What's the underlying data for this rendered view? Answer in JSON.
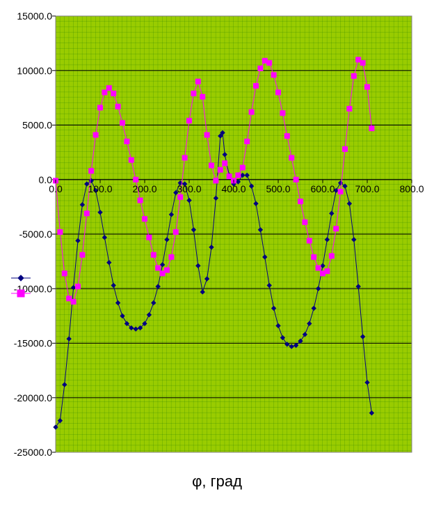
{
  "chart_data": {
    "type": "line",
    "title": "",
    "xlabel": "φ, град",
    "ylabel": "",
    "xlim": [
      0,
      800
    ],
    "ylim": [
      -25000,
      15000
    ],
    "grid": true,
    "legend": "left",
    "plot_background": "#99CC00",
    "x_tick_labels": [
      "0.0",
      "100.0",
      "200.0",
      "300.0",
      "400.0",
      "500.0",
      "600.0",
      "700.0",
      "800.0"
    ],
    "y_tick_labels": [
      "15000.0",
      "10000.0",
      "5000.0",
      "0.0",
      "-5000.0",
      "-10000.0",
      "-15000.0",
      "-20000.0",
      "-25000.0"
    ],
    "series": [
      {
        "color": "#000080",
        "marker": "diamond",
        "x": [
          0,
          10,
          20,
          30,
          40,
          50,
          60,
          70,
          80,
          90,
          100,
          110,
          120,
          130,
          140,
          150,
          160,
          170,
          180,
          190,
          200,
          210,
          220,
          230,
          240,
          250,
          260,
          270,
          280,
          290,
          300,
          310,
          320,
          330,
          340,
          350,
          360,
          370,
          375,
          380,
          390,
          400,
          410,
          420,
          430,
          440,
          450,
          460,
          470,
          480,
          490,
          500,
          510,
          520,
          530,
          540,
          550,
          560,
          570,
          580,
          590,
          600,
          610,
          620,
          630,
          640,
          650,
          660,
          670,
          680,
          690,
          700,
          710
        ],
        "y": [
          -22700,
          -22100,
          -18800,
          -14600,
          -9900,
          -5600,
          -2300,
          -400,
          -100,
          -1000,
          -3000,
          -5300,
          -7600,
          -9700,
          -11300,
          -12500,
          -13200,
          -13600,
          -13700,
          -13600,
          -13200,
          -12400,
          -11300,
          -9800,
          -7800,
          -5500,
          -3200,
          -1200,
          -300,
          -400,
          -1900,
          -4600,
          -7900,
          -10300,
          -9100,
          -6200,
          -1700,
          4000,
          4300,
          2300,
          400,
          -400,
          -200,
          400,
          400,
          -600,
          -2200,
          -4600,
          -7100,
          -9700,
          -11800,
          -13400,
          -14500,
          -15100,
          -15300,
          -15200,
          -14800,
          -14200,
          -13200,
          -11800,
          -10000,
          -7900,
          -5500,
          -3100,
          -1000,
          -300,
          -600,
          -2200,
          -5500,
          -9800,
          -14400,
          -18600,
          -21400
        ]
      },
      {
        "color": "#FF00FF",
        "marker": "square",
        "x": [
          0,
          10,
          20,
          30,
          40,
          50,
          60,
          70,
          80,
          90,
          100,
          110,
          120,
          130,
          140,
          150,
          160,
          170,
          180,
          190,
          200,
          210,
          220,
          230,
          240,
          250,
          260,
          270,
          280,
          290,
          300,
          310,
          320,
          330,
          340,
          350,
          360,
          370,
          380,
          390,
          400,
          410,
          420,
          430,
          440,
          450,
          460,
          470,
          480,
          490,
          500,
          510,
          520,
          530,
          540,
          550,
          560,
          570,
          580,
          590,
          600,
          610,
          620,
          630,
          640,
          650,
          660,
          670,
          680,
          690,
          700,
          710
        ],
        "y": [
          -100,
          -4800,
          -8600,
          -10900,
          -11200,
          -9800,
          -6900,
          -3100,
          800,
          4100,
          6600,
          8000,
          8400,
          7900,
          6700,
          5200,
          3500,
          1800,
          0,
          -1900,
          -3600,
          -5300,
          -6900,
          -8100,
          -8600,
          -8300,
          -7100,
          -4800,
          -1600,
          2000,
          5400,
          7900,
          9000,
          7600,
          4100,
          1300,
          -100,
          900,
          1500,
          300,
          -100,
          400,
          1100,
          3500,
          6200,
          8600,
          10200,
          10900,
          10700,
          9600,
          8000,
          6100,
          4000,
          2000,
          0,
          -2000,
          -3900,
          -5600,
          -7100,
          -8100,
          -8600,
          -8400,
          -7000,
          -4500,
          -1100,
          2800,
          6500,
          9500,
          11000,
          10700,
          8500,
          4700
        ]
      }
    ]
  }
}
